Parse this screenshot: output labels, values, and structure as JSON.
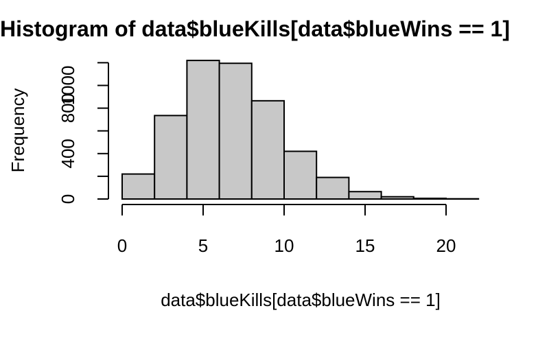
{
  "chart_data": {
    "type": "bar",
    "title": "Histogram of data$blueKills[data$blueWins == 1]",
    "xlabel": "data$blueKills[data$blueWins == 1]",
    "ylabel": "Frequency",
    "bins": [
      {
        "from": 0,
        "to": 2,
        "count": 220
      },
      {
        "from": 2,
        "to": 4,
        "count": 735
      },
      {
        "from": 4,
        "to": 6,
        "count": 1220
      },
      {
        "from": 6,
        "to": 8,
        "count": 1195
      },
      {
        "from": 8,
        "to": 10,
        "count": 865
      },
      {
        "from": 10,
        "to": 12,
        "count": 420
      },
      {
        "from": 12,
        "to": 14,
        "count": 190
      },
      {
        "from": 14,
        "to": 16,
        "count": 65
      },
      {
        "from": 16,
        "to": 18,
        "count": 20
      },
      {
        "from": 18,
        "to": 20,
        "count": 6
      },
      {
        "from": 20,
        "to": 22,
        "count": 2
      }
    ],
    "xticks": [
      0,
      5,
      10,
      15,
      20
    ],
    "yticks": [
      0,
      400,
      800,
      1000
    ],
    "xlim": [
      0,
      22
    ],
    "ylim": [
      0,
      1200
    ],
    "grid": false,
    "legend": "none"
  }
}
